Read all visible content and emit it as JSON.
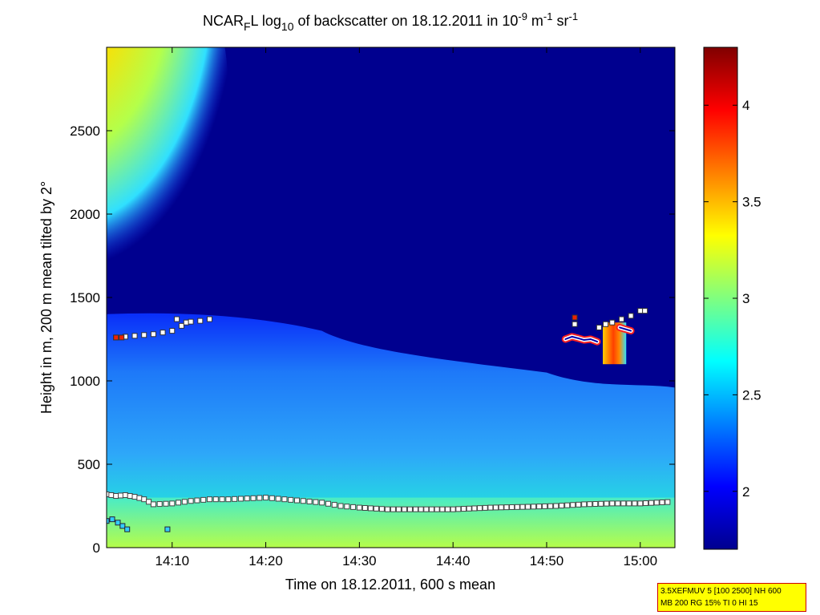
{
  "chart_data": {
    "type": "heatmap",
    "title": {
      "text_1": "NCAR",
      "sub_1": "F",
      "text_2": "L log",
      "sub_2": "10",
      "text_3": " of backscatter on 18.12.2011 in 10",
      "sup_1": "-9",
      "text_4": " m",
      "sup_2": "-1",
      "text_5": " sr",
      "sup_3": "-1"
    },
    "xlabel": "Time on 18.12.2011, 600 s mean",
    "ylabel": "Height in m, 200 m mean tilted by 2°",
    "x_ticks": [
      "14:10",
      "14:20",
      "14:30",
      "14:40",
      "14:50",
      "15:00"
    ],
    "x_tick_minutes": [
      10,
      20,
      30,
      40,
      50,
      60
    ],
    "xlim_minutes": [
      3,
      63.7
    ],
    "y_ticks": [
      0,
      500,
      1000,
      1500,
      2000,
      2500
    ],
    "ylim": [
      0,
      3000
    ],
    "colorbar": {
      "ticks": [
        2,
        2.5,
        3,
        3.5,
        4
      ],
      "tick_labels": [
        "2",
        "2.5",
        "3",
        "3.5",
        "4"
      ],
      "range": [
        1.7,
        4.3
      ],
      "colormap": "jet"
    },
    "background_value": 1.8,
    "regions": [
      {
        "name": "upper cloud",
        "x": [
          3,
          13
        ],
        "y": [
          1900,
          3000
        ],
        "value": 3.1
      },
      {
        "name": "boundary layer",
        "x": [
          3,
          63.7
        ],
        "y": [
          0,
          1400
        ],
        "value": 2.4
      },
      {
        "name": "near surface",
        "x": [
          3,
          63.7
        ],
        "y": [
          0,
          300
        ],
        "value": 3.0
      },
      {
        "name": "cloud feature",
        "x": [
          56,
          58.5
        ],
        "y": [
          1100,
          1350
        ],
        "value": 3.8
      }
    ],
    "markers": {
      "lower_layer": [
        {
          "x": 3,
          "y": 320
        },
        {
          "x": 4,
          "y": 310
        },
        {
          "x": 5,
          "y": 315
        },
        {
          "x": 6,
          "y": 305
        },
        {
          "x": 7,
          "y": 290
        },
        {
          "x": 8,
          "y": 260
        },
        {
          "x": 10,
          "y": 265
        },
        {
          "x": 12,
          "y": 280
        },
        {
          "x": 14,
          "y": 290
        },
        {
          "x": 16,
          "y": 290
        },
        {
          "x": 18,
          "y": 295
        },
        {
          "x": 20,
          "y": 300
        },
        {
          "x": 22,
          "y": 290
        },
        {
          "x": 24,
          "y": 280
        },
        {
          "x": 26,
          "y": 270
        },
        {
          "x": 28,
          "y": 250
        },
        {
          "x": 30,
          "y": 240
        },
        {
          "x": 33,
          "y": 230
        },
        {
          "x": 36,
          "y": 230
        },
        {
          "x": 40,
          "y": 230
        },
        {
          "x": 44,
          "y": 240
        },
        {
          "x": 48,
          "y": 245
        },
        {
          "x": 51,
          "y": 250
        },
        {
          "x": 54,
          "y": 260
        },
        {
          "x": 57,
          "y": 265
        },
        {
          "x": 60,
          "y": 265
        },
        {
          "x": 63.5,
          "y": 275
        }
      ],
      "low_points": [
        {
          "x": 3,
          "y": 160
        },
        {
          "x": 3.6,
          "y": 170
        },
        {
          "x": 4.2,
          "y": 150
        },
        {
          "x": 4.7,
          "y": 130
        },
        {
          "x": 5.2,
          "y": 110
        },
        {
          "x": 9.5,
          "y": 110
        }
      ],
      "upper_layer": [
        {
          "x": 4,
          "y": 1260
        },
        {
          "x": 5,
          "y": 1265
        },
        {
          "x": 6,
          "y": 1270
        },
        {
          "x": 7,
          "y": 1275
        },
        {
          "x": 8,
          "y": 1280
        },
        {
          "x": 9,
          "y": 1290
        },
        {
          "x": 10,
          "y": 1300
        },
        {
          "x": 10.5,
          "y": 1370
        },
        {
          "x": 11,
          "y": 1330
        },
        {
          "x": 11.5,
          "y": 1350
        },
        {
          "x": 12,
          "y": 1355
        },
        {
          "x": 13,
          "y": 1360
        },
        {
          "x": 14,
          "y": 1370
        }
      ],
      "red_points": [
        {
          "x": 4,
          "y": 1260
        },
        {
          "x": 4.6,
          "y": 1260
        },
        {
          "x": 53,
          "y": 1380
        }
      ],
      "right_cluster": [
        {
          "x": 53,
          "y": 1340
        },
        {
          "x": 55.6,
          "y": 1320
        },
        {
          "x": 56.3,
          "y": 1340
        },
        {
          "x": 57,
          "y": 1350
        },
        {
          "x": 58,
          "y": 1370
        },
        {
          "x": 59,
          "y": 1390
        },
        {
          "x": 60,
          "y": 1420
        },
        {
          "x": 60.5,
          "y": 1420
        }
      ],
      "circled_trace_1": [
        {
          "x": 52,
          "y": 1250
        },
        {
          "x": 52.7,
          "y": 1265
        },
        {
          "x": 53.4,
          "y": 1255
        },
        {
          "x": 54,
          "y": 1245
        },
        {
          "x": 54.7,
          "y": 1250
        },
        {
          "x": 55.4,
          "y": 1235
        }
      ],
      "circled_trace_2": [
        {
          "x": 57.8,
          "y": 1320
        },
        {
          "x": 58.4,
          "y": 1310
        },
        {
          "x": 59,
          "y": 1300
        }
      ]
    }
  },
  "info_box": {
    "line_1": "3.5XEFMUV 5 [100 2500] NH 600",
    "line_2": "MB 200 RG 15% TI 0 HI 15"
  }
}
